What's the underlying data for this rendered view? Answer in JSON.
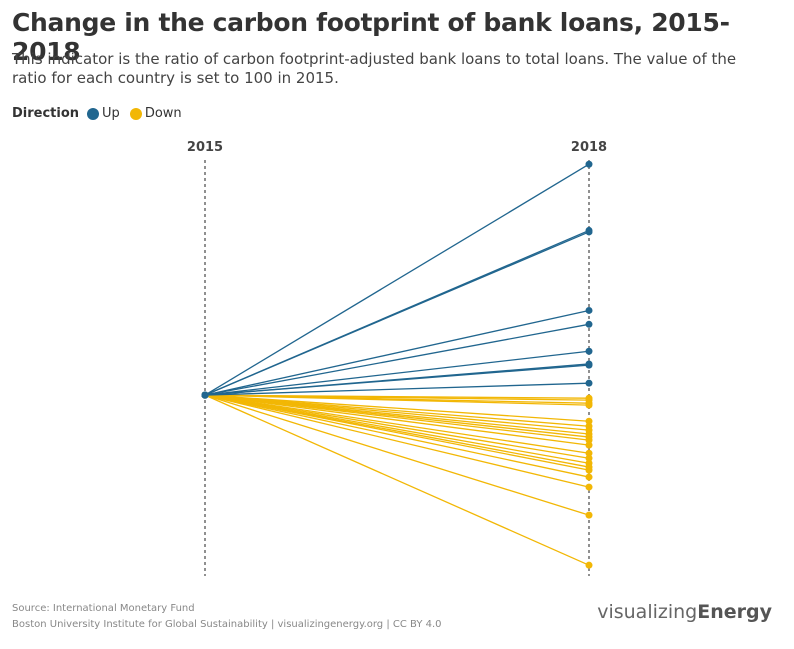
{
  "chart_data": {
    "type": "slope",
    "title": "Change in the carbon footprint of bank loans, 2015-2018",
    "subtitle": "This indicator is the ratio of carbon footprint-adjusted bank loans to total loans. The value of the ratio for each country is set to 100 in 2015.",
    "legend_title": "Direction",
    "categories": [
      "2015",
      "2018"
    ],
    "ylim": [
      50,
      165
    ],
    "series": [
      {
        "name": "Up",
        "color": "#21668f",
        "lines": [
          [
            100,
            160
          ],
          [
            100,
            142.8
          ],
          [
            100,
            142.4
          ],
          [
            100,
            122
          ],
          [
            100,
            118.4
          ],
          [
            100,
            111.4
          ],
          [
            100,
            108.1
          ],
          [
            100,
            107.8
          ],
          [
            100,
            103.1
          ]
        ]
      },
      {
        "name": "Down",
        "color": "#f2b705",
        "lines": [
          [
            100,
            99.2
          ],
          [
            100,
            98.7
          ],
          [
            100,
            97.9
          ],
          [
            100,
            97.4
          ],
          [
            100,
            93.2
          ],
          [
            100,
            91.9
          ],
          [
            100,
            90.9
          ],
          [
            100,
            89.9
          ],
          [
            100,
            89.1
          ],
          [
            100,
            88.3
          ],
          [
            100,
            87
          ],
          [
            100,
            84.9
          ],
          [
            100,
            83.6
          ],
          [
            100,
            82.3
          ],
          [
            100,
            81.3
          ],
          [
            100,
            80.5
          ],
          [
            100,
            78.7
          ],
          [
            100,
            76.1
          ],
          [
            100,
            68.8
          ],
          [
            100,
            55.8
          ]
        ]
      }
    ],
    "source": "Source: International Monetary Fund",
    "credit": "Boston University Institute for Global Sustainability | visualizingenergy.org | CC BY 4.0",
    "logo": {
      "light": "visualizing",
      "bold": "Energy"
    }
  }
}
